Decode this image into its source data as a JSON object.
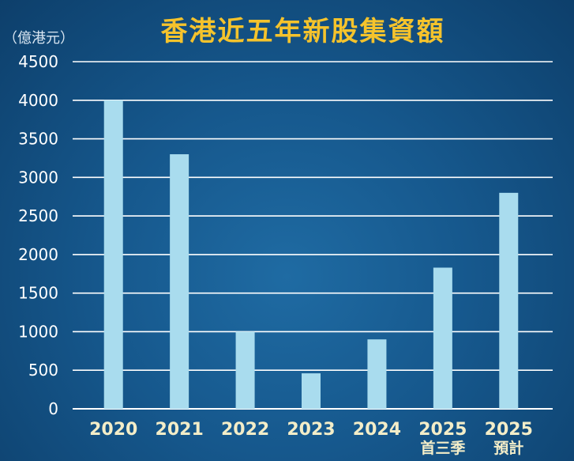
{
  "chart_data": {
    "type": "bar",
    "title": "香港近五年新股集資額",
    "ylabel": "（億港元）",
    "xlabel": "",
    "categories": [
      [
        "2020"
      ],
      [
        "2021"
      ],
      [
        "2022"
      ],
      [
        "2023"
      ],
      [
        "2024"
      ],
      [
        "2025",
        "首三季"
      ],
      [
        "2025",
        "預計"
      ]
    ],
    "values": [
      4000,
      3300,
      1000,
      460,
      900,
      1830,
      2800
    ],
    "ylim": [
      0,
      4500
    ],
    "yticks": [
      0,
      500,
      1000,
      1500,
      2000,
      2500,
      3000,
      3500,
      4000,
      4500
    ],
    "grid": true,
    "colors": {
      "bar": "#a9dcee",
      "grid": "#ffffff",
      "title": "#f5c32c",
      "tick_y": "#ffffff",
      "tick_x": "#f3edc8"
    }
  }
}
